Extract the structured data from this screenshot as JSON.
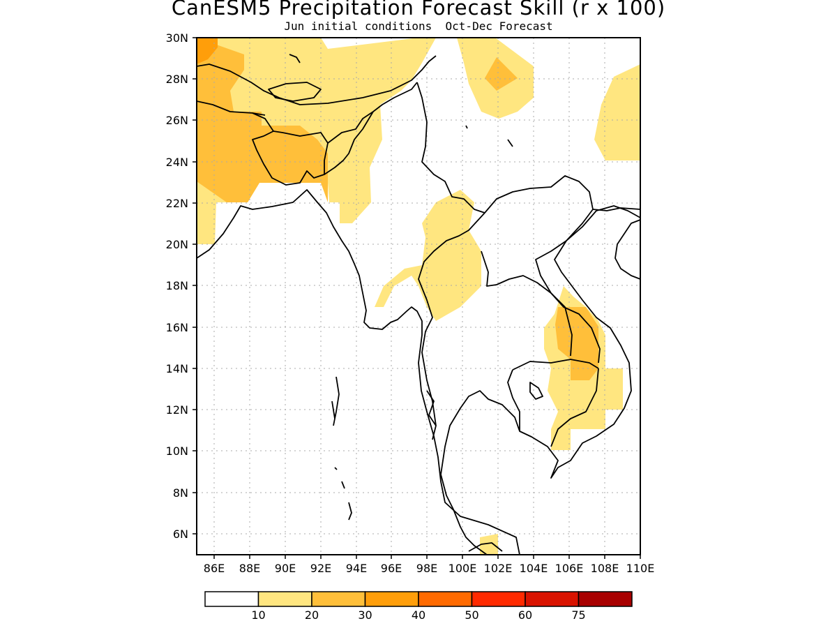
{
  "title": "CanESM5 Precipitation Forecast Skill (r x 100)",
  "subtitle": "Jun initial conditions  Oct-Dec Forecast",
  "map": {
    "lon_range": [
      85,
      110
    ],
    "lat_range": [
      5,
      30
    ],
    "grid": true,
    "lat_ticks": [
      "30N",
      "28N",
      "26N",
      "24N",
      "22N",
      "20N",
      "18N",
      "16N",
      "14N",
      "12N",
      "10N",
      "8N",
      "6N"
    ],
    "lon_ticks": [
      "86E",
      "88E",
      "90E",
      "92E",
      "94E",
      "96E",
      "98E",
      "100E",
      "102E",
      "104E",
      "106E",
      "108E",
      "110E"
    ]
  },
  "colorbar": {
    "colors": [
      "#ffffff",
      "#ffe680",
      "#ffbf3a",
      "#ff9e0a",
      "#ff6a00",
      "#ff2a00",
      "#d91300",
      "#a80000"
    ],
    "labels": [
      "10",
      "20",
      "30",
      "40",
      "50",
      "60",
      "75"
    ]
  }
}
